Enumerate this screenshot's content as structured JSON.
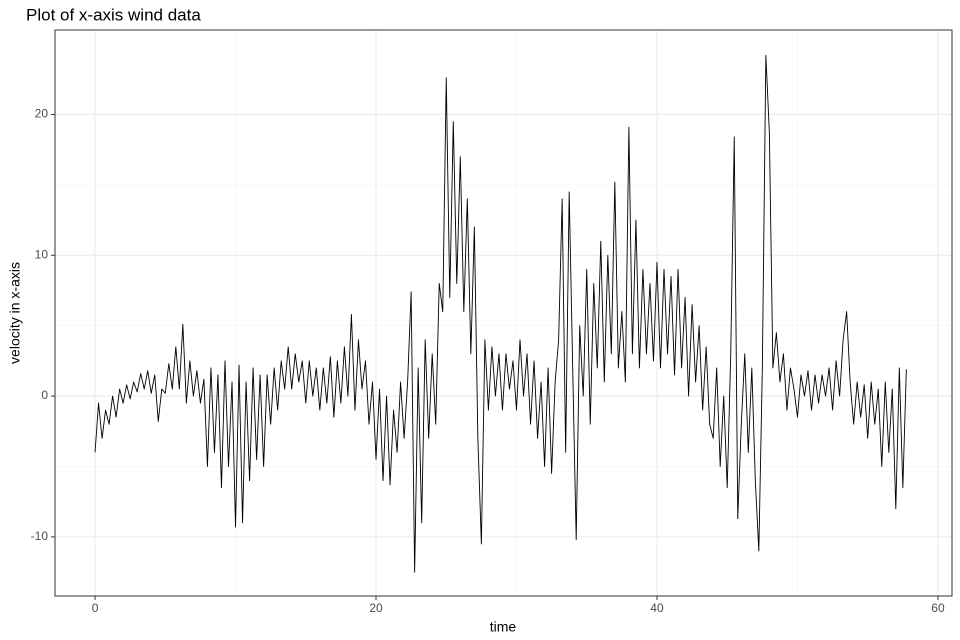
{
  "chart_data": {
    "type": "line",
    "title": "Plot of x-axis wind data",
    "x_label": "time",
    "y_label": "velocity in x-axis",
    "color": "#000000",
    "grid": true,
    "minor_grid": true,
    "xlim": [
      -2.85,
      61
    ],
    "ylim": [
      -14.2,
      26
    ],
    "xticks": [
      0,
      20,
      40,
      60
    ],
    "yticks": [
      -10,
      0,
      10,
      20
    ],
    "x": [
      0,
      0.25,
      0.5,
      0.75,
      1,
      1.25,
      1.5,
      1.75,
      2,
      2.25,
      2.5,
      2.75,
      3,
      3.25,
      3.5,
      3.75,
      4,
      4.25,
      4.5,
      4.75,
      5,
      5.25,
      5.5,
      5.75,
      6,
      6.25,
      6.5,
      6.75,
      7,
      7.25,
      7.5,
      7.75,
      8,
      8.25,
      8.5,
      8.75,
      9,
      9.25,
      9.5,
      9.75,
      10,
      10.25,
      10.5,
      10.75,
      11,
      11.25,
      11.5,
      11.75,
      12,
      12.25,
      12.5,
      12.75,
      13,
      13.25,
      13.5,
      13.75,
      14,
      14.25,
      14.5,
      14.75,
      15,
      15.25,
      15.5,
      15.75,
      16,
      16.25,
      16.5,
      16.75,
      17,
      17.25,
      17.5,
      17.75,
      18,
      18.25,
      18.5,
      18.75,
      19,
      19.25,
      19.5,
      19.75,
      20,
      20.25,
      20.5,
      20.75,
      21,
      21.25,
      21.5,
      21.75,
      22,
      22.25,
      22.5,
      22.75,
      23,
      23.25,
      23.5,
      23.75,
      24,
      24.25,
      24.5,
      24.75,
      25,
      25.25,
      25.5,
      25.75,
      26,
      26.25,
      26.5,
      26.75,
      27,
      27.25,
      27.5,
      27.75,
      28,
      28.25,
      28.5,
      28.75,
      29,
      29.25,
      29.5,
      29.75,
      30,
      30.25,
      30.5,
      30.75,
      31,
      31.25,
      31.5,
      31.75,
      32,
      32.25,
      32.5,
      32.75,
      33,
      33.25,
      33.5,
      33.75,
      34,
      34.25,
      34.5,
      34.75,
      35,
      35.25,
      35.5,
      35.75,
      36,
      36.25,
      36.5,
      36.75,
      37,
      37.25,
      37.5,
      37.75,
      38,
      38.25,
      38.5,
      38.75,
      39,
      39.25,
      39.5,
      39.75,
      40,
      40.25,
      40.5,
      40.75,
      41,
      41.25,
      41.5,
      41.75,
      42,
      42.25,
      42.5,
      42.75,
      43,
      43.25,
      43.5,
      43.75,
      44,
      44.25,
      44.5,
      44.75,
      45,
      45.25,
      45.5,
      45.75,
      46,
      46.25,
      46.5,
      46.75,
      47,
      47.25,
      47.5,
      47.75,
      48,
      48.25,
      48.5,
      48.75,
      49,
      49.25,
      49.5,
      49.75,
      50,
      50.25,
      50.5,
      50.75,
      51,
      51.25,
      51.5,
      51.75,
      52,
      52.25,
      52.5,
      52.75,
      53,
      53.25,
      53.5,
      53.75,
      54,
      54.25,
      54.5,
      54.75,
      55,
      55.25,
      55.5,
      55.75,
      56,
      56.25,
      56.5,
      56.75,
      57,
      57.25,
      57.5,
      57.75
    ],
    "values": [
      -4,
      -0.5,
      -3,
      -1,
      -2,
      0,
      -1.5,
      0.5,
      -0.5,
      0.8,
      -0.2,
      1,
      0.3,
      1.6,
      0.5,
      1.8,
      0.2,
      1.5,
      -1.8,
      0.5,
      0.2,
      2.3,
      0.5,
      3.5,
      0.5,
      5.1,
      -0.5,
      2.5,
      0,
      1.8,
      -0.5,
      1.2,
      -5,
      2,
      -4,
      1.5,
      -6.5,
      2.5,
      -5,
      1,
      -9.3,
      2.2,
      -9,
      1,
      -6,
      2,
      -4.5,
      1.5,
      -5,
      1.5,
      -2,
      2,
      -1,
      2.5,
      0.5,
      3.5,
      0.5,
      3,
      1,
      2.5,
      -0.5,
      2.5,
      0,
      2,
      -1,
      2,
      -0.5,
      2.8,
      -1.5,
      2.5,
      -0.5,
      3.5,
      0,
      5.8,
      -1,
      4,
      0.5,
      2.5,
      -2,
      1,
      -4.5,
      0.5,
      -6,
      0,
      -6.3,
      -1,
      -4,
      1,
      -3,
      1,
      7.4,
      -12.5,
      2,
      -9,
      4,
      -3,
      3,
      -2,
      8,
      6,
      22.6,
      7,
      19.5,
      8,
      17,
      6,
      14,
      3,
      12,
      -3,
      -10.5,
      4,
      -1,
      3.5,
      0,
      3,
      -1,
      3,
      0.5,
      2.5,
      -1,
      4,
      0,
      3,
      -2,
      2.5,
      -3,
      1,
      -5,
      2,
      -5.5,
      1,
      4,
      14,
      -4,
      14.5,
      2,
      -10.2,
      5,
      0,
      9,
      -2,
      8,
      2,
      11,
      1,
      10,
      3,
      15.2,
      2,
      6,
      1,
      19.1,
      3,
      12.5,
      2,
      9,
      3,
      8,
      2.5,
      9.5,
      2,
      9,
      3,
      8.5,
      1.5,
      9,
      2,
      7,
      0,
      6.5,
      1,
      5,
      -1,
      3.5,
      -2,
      -3,
      2,
      -5,
      0,
      -6.5,
      3,
      18.4,
      -8.7,
      -2,
      3,
      -4,
      2,
      -6,
      -11,
      2,
      24.2,
      18.7,
      2,
      4.5,
      1,
      3,
      -1,
      2,
      0.5,
      -1.5,
      1.5,
      0,
      1.8,
      -1,
      1.5,
      -0.5,
      1.5,
      0,
      2,
      -1,
      2.5,
      0,
      4,
      6,
      1,
      -2,
      1,
      -1.5,
      0.8,
      -3,
      1,
      -2,
      0.5,
      -5,
      1,
      -4,
      0.5,
      -8,
      2,
      -6.5,
      1.9
    ]
  }
}
